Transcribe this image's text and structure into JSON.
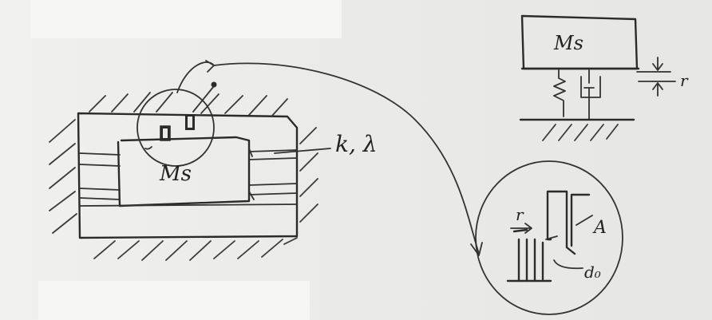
{
  "labels": {
    "mass_main": "Ms",
    "spring_damper": "k, λ",
    "mass_model": "Ms",
    "gap_model": "r",
    "detail_gap": "r",
    "detail_area": "A",
    "detail_d0": "d₀"
  }
}
